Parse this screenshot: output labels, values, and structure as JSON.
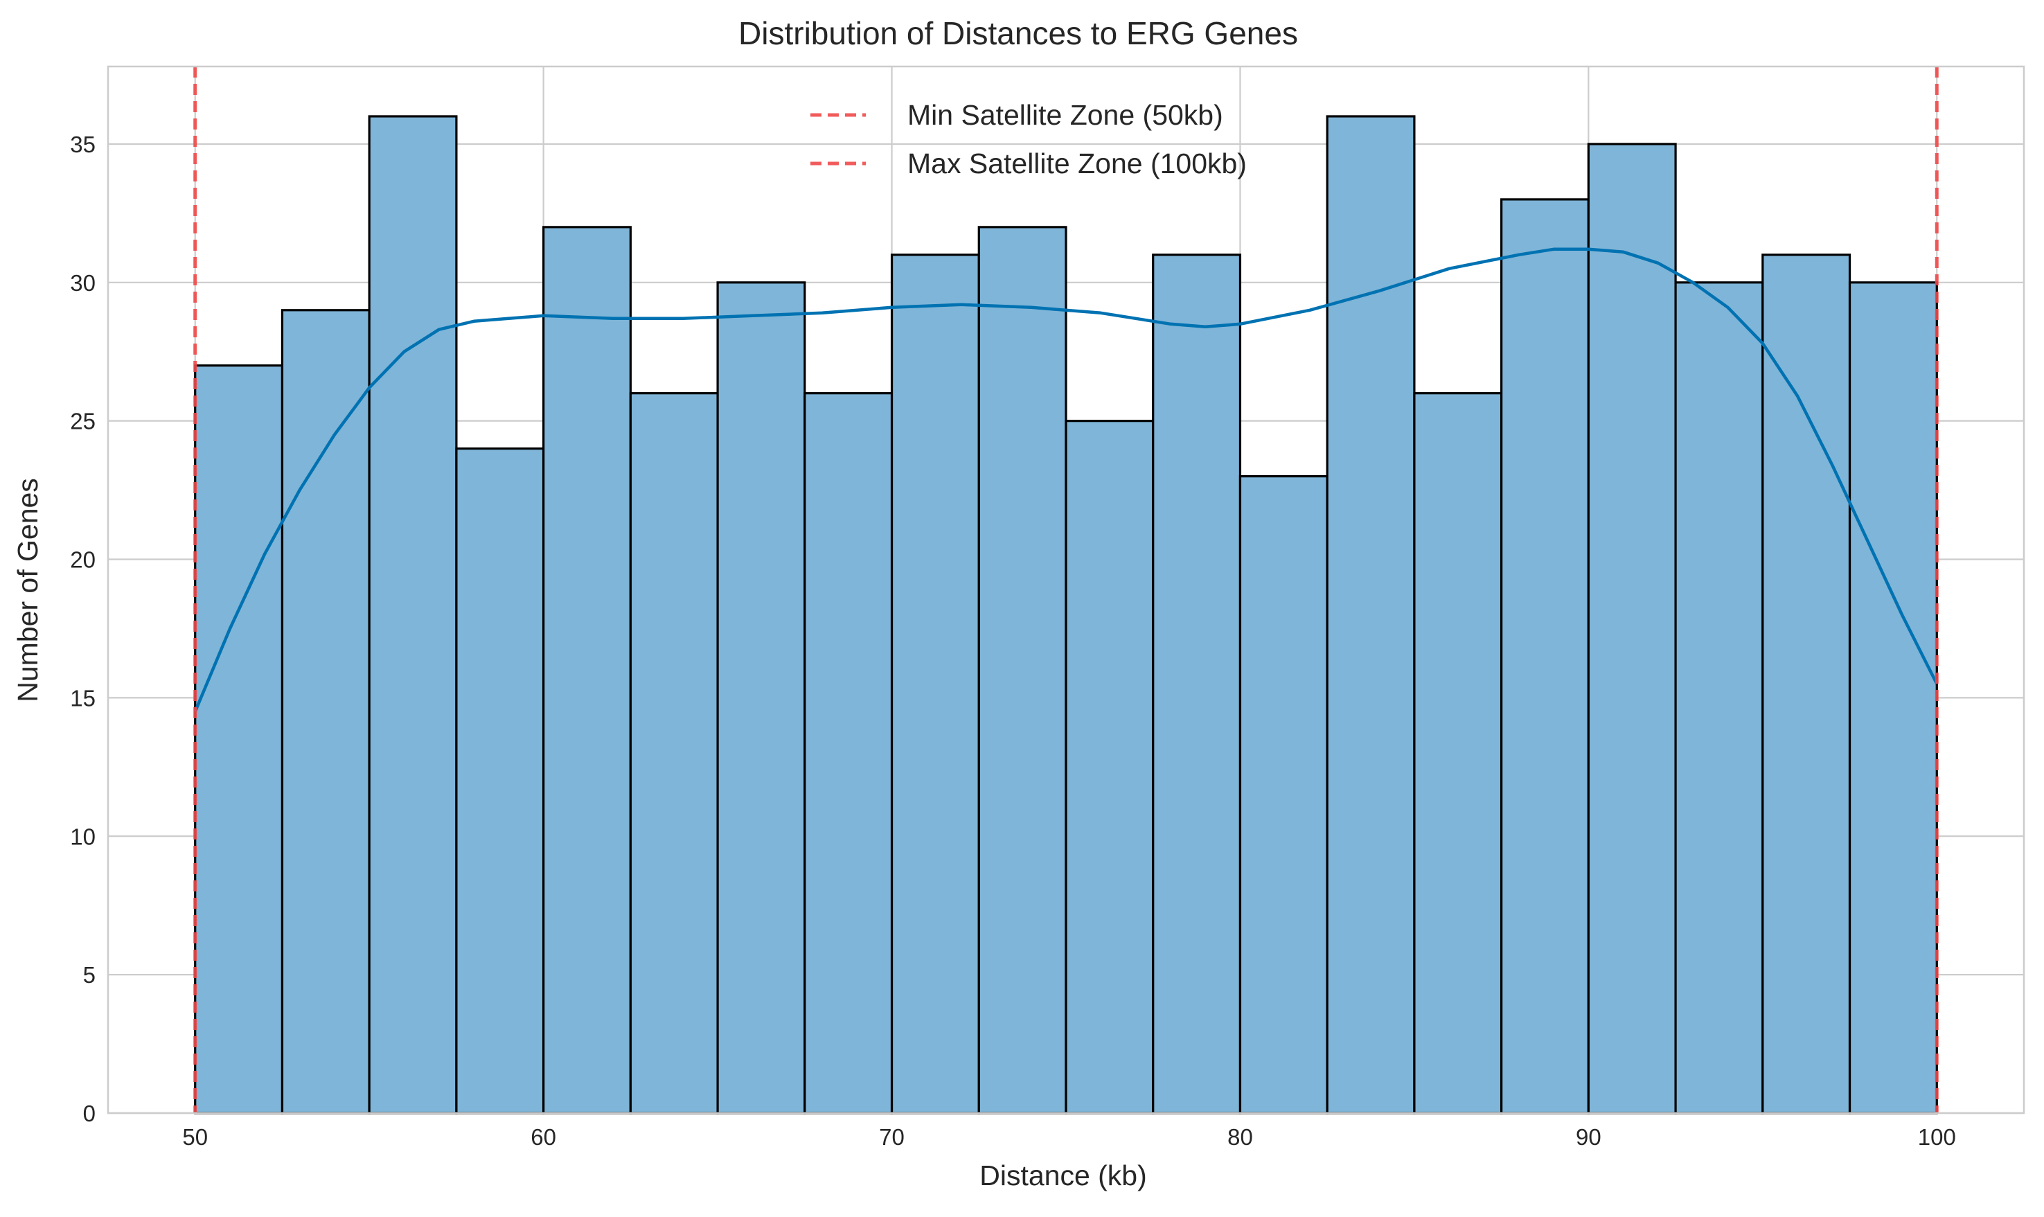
{
  "chart_data": {
    "type": "bar",
    "title": "Distribution of Distances to ERG Genes",
    "xlabel": "Distance (kb)",
    "ylabel": "Number of Genes",
    "xlim": [
      47.5,
      102.5
    ],
    "ylim": [
      0,
      37.8
    ],
    "x_ticks": [
      50,
      60,
      70,
      80,
      90,
      100
    ],
    "y_ticks": [
      0,
      5,
      10,
      15,
      20,
      25,
      30,
      35
    ],
    "grid": true,
    "legend_position": "top-center",
    "bins": {
      "edges": [
        50,
        52.5,
        55,
        57.5,
        60,
        62.5,
        65,
        67.5,
        70,
        72.5,
        75,
        77.5,
        80,
        82.5,
        85,
        87.5,
        90,
        92.5,
        95,
        97.5,
        100
      ],
      "counts": [
        27,
        29,
        36,
        24,
        32,
        26,
        30,
        26,
        31,
        32,
        25,
        31,
        23,
        36,
        26,
        33,
        35,
        30,
        31,
        30
      ]
    },
    "kde": {
      "x": [
        50,
        51,
        52,
        53,
        54,
        55,
        56,
        57,
        58,
        59,
        60,
        62,
        64,
        66,
        68,
        70,
        72,
        74,
        76,
        78,
        79,
        80,
        82,
        84,
        86,
        88,
        89,
        90,
        91,
        92,
        93,
        94,
        95,
        96,
        97,
        98,
        99,
        100
      ],
      "y": [
        14.5,
        17.5,
        20.2,
        22.5,
        24.5,
        26.2,
        27.5,
        28.3,
        28.6,
        28.7,
        28.8,
        28.7,
        28.7,
        28.8,
        28.9,
        29.1,
        29.2,
        29.1,
        28.9,
        28.5,
        28.4,
        28.5,
        29.0,
        29.7,
        30.5,
        31.0,
        31.2,
        31.2,
        31.1,
        30.7,
        30.0,
        29.1,
        27.8,
        25.9,
        23.4,
        20.7,
        18.0,
        15.5
      ]
    },
    "reference_lines": [
      {
        "x": 50,
        "label": "Min Satellite Zone (50kb)"
      },
      {
        "x": 100,
        "label": "Max Satellite Zone (100kb)"
      }
    ],
    "colors": {
      "bar_fill": "#7fb5d8",
      "bar_edge": "#000000",
      "kde_line": "#0072b2",
      "reference_line": "#f04a4a",
      "grid": "#cccccc",
      "axes_edge": "#cccccc",
      "text": "#262626"
    }
  }
}
